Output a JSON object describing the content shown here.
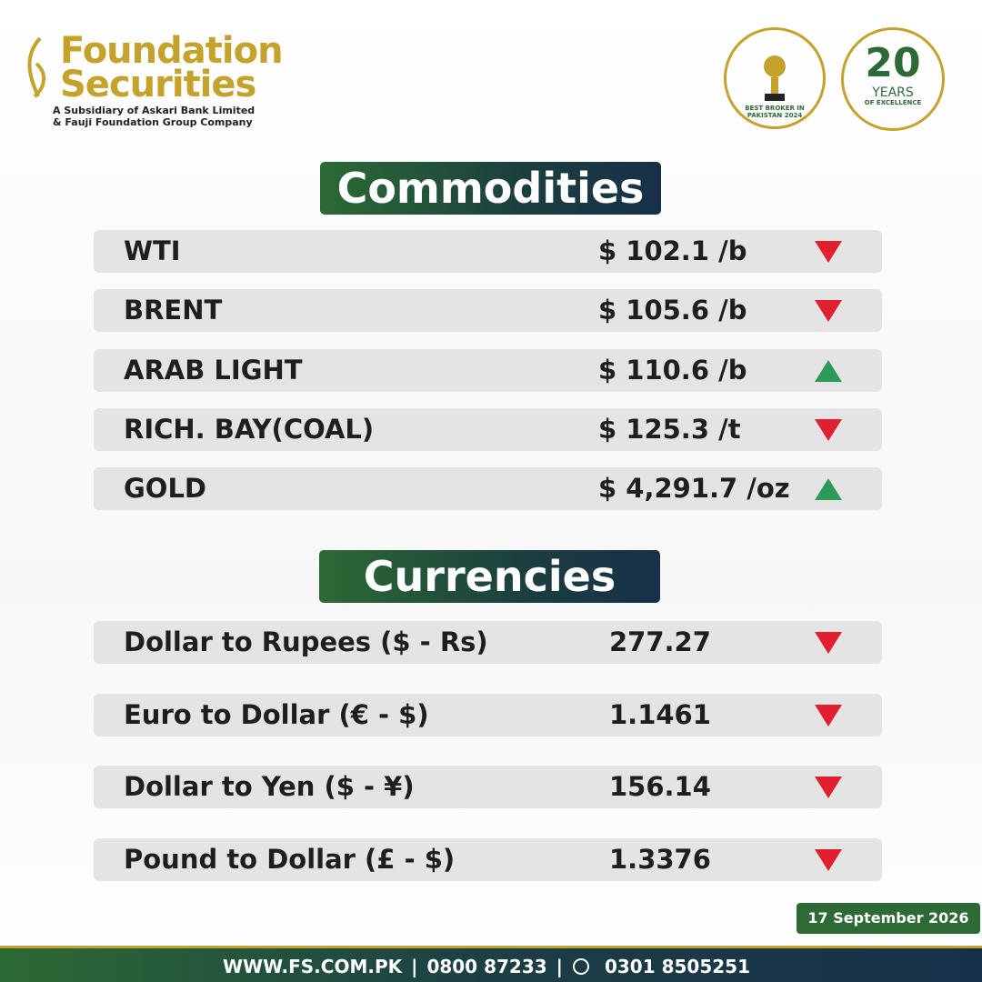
{
  "header": {
    "logo_line1": "Foundation",
    "logo_line2": "Securities",
    "subtitle_line1": "A Subsidiary of Askari Bank Limited",
    "subtitle_line2": "& Fauji Foundation Group Company",
    "award": "BEST BROKER IN PAKISTAN 2024",
    "anniversary_number": "20",
    "anniversary_word": "YEARS",
    "anniversary_tagline": "OF EXCELLENCE"
  },
  "commodities": {
    "title": "Commodities",
    "rows": [
      {
        "name": "WTI",
        "price": "$ 102.1 /b",
        "trend": "down"
      },
      {
        "name": "BRENT",
        "price": "$ 105.6 /b",
        "trend": "down"
      },
      {
        "name": "ARAB LIGHT",
        "price": "$ 110.6 /b",
        "trend": "up"
      },
      {
        "name": "RICH. BAY(COAL)",
        "price": "$ 125.3 /t",
        "trend": "down"
      },
      {
        "name": "GOLD",
        "price": "$ 4,291.7 /oz",
        "trend": "up"
      }
    ]
  },
  "currencies": {
    "title": "Currencies",
    "rows": [
      {
        "name": "Dollar to Rupees ($ - Rs)",
        "price": "277.27",
        "trend": "down"
      },
      {
        "name": "Euro to Dollar (€ - $)",
        "price": "1.1461",
        "trend": "down"
      },
      {
        "name": "Dollar to Yen ($ - ¥)",
        "price": "156.14",
        "trend": "down"
      },
      {
        "name": "Pound to Dollar (£ - $)",
        "price": "1.3376",
        "trend": "down"
      }
    ]
  },
  "date": "17 September 2026",
  "footer": {
    "website": "WWW.FS.COM.PK",
    "phone": "0800 87233",
    "whatsapp": "0301 8505251"
  }
}
